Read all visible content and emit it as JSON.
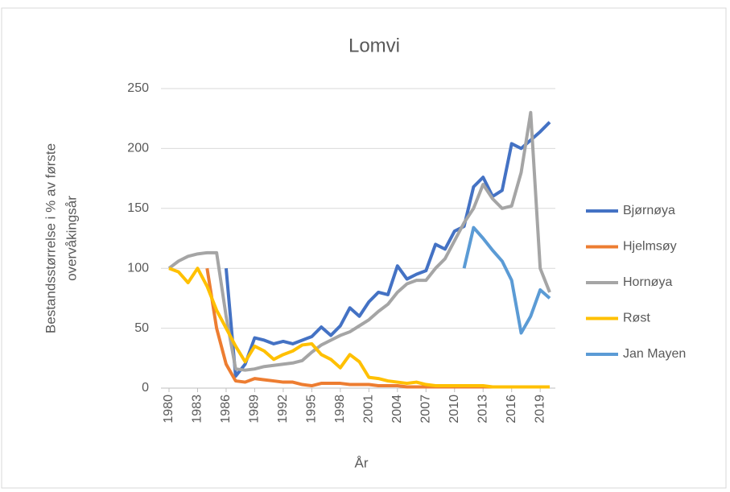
{
  "chart_data": {
    "type": "line",
    "title": "Lomvi",
    "x_label": "År",
    "y_label": [
      "Bestandsstørrelse i % av første",
      "overvåkingsår"
    ],
    "x": [
      1980,
      1981,
      1982,
      1983,
      1984,
      1985,
      1986,
      1987,
      1988,
      1989,
      1990,
      1991,
      1992,
      1993,
      1994,
      1995,
      1996,
      1997,
      1998,
      1999,
      2000,
      2001,
      2002,
      2003,
      2004,
      2005,
      2006,
      2007,
      2008,
      2009,
      2010,
      2011,
      2012,
      2013,
      2014,
      2015,
      2016,
      2017,
      2018,
      2019,
      2020
    ],
    "xlim": [
      1980,
      2020
    ],
    "xticks": [
      1980,
      1983,
      1986,
      1989,
      1992,
      1995,
      1998,
      2001,
      2004,
      2007,
      2010,
      2013,
      2016,
      2019
    ],
    "ylim": [
      0,
      250
    ],
    "yticks": [
      0,
      50,
      100,
      150,
      200,
      250
    ],
    "grid": true,
    "legend": "right",
    "series": [
      {
        "name": "Bjørnøya",
        "color": "#4472c4",
        "values": [
          null,
          null,
          null,
          null,
          null,
          null,
          100,
          10,
          20,
          42,
          40,
          37,
          39,
          37,
          40,
          43,
          51,
          44,
          52,
          67,
          60,
          72,
          80,
          78,
          102,
          91,
          95,
          98,
          120,
          116,
          131,
          135,
          168,
          176,
          160,
          165,
          204,
          200,
          207,
          214,
          222
        ]
      },
      {
        "name": "Hjelmsøy",
        "color": "#ed7d31",
        "values": [
          null,
          null,
          null,
          null,
          100,
          50,
          20,
          6,
          5,
          8,
          7,
          6,
          5,
          5,
          3,
          2,
          4,
          4,
          4,
          3,
          3,
          3,
          2,
          2,
          2,
          1,
          1,
          1,
          1,
          1,
          1,
          1,
          1,
          1,
          1,
          1,
          1,
          1,
          1,
          1,
          1
        ]
      },
      {
        "name": "Hornøya",
        "color": "#a5a5a5",
        "values": [
          100,
          106,
          110,
          112,
          113,
          113,
          60,
          16,
          15,
          16,
          18,
          19,
          20,
          21,
          23,
          30,
          36,
          40,
          44,
          47,
          52,
          57,
          64,
          70,
          80,
          87,
          90,
          90,
          100,
          108,
          123,
          138,
          150,
          170,
          158,
          150,
          152,
          180,
          230,
          100,
          80
        ]
      },
      {
        "name": "Røst",
        "color": "#ffc000",
        "values": [
          100,
          97,
          88,
          100,
          85,
          65,
          50,
          35,
          22,
          35,
          31,
          24,
          28,
          31,
          36,
          37,
          28,
          24,
          17,
          28,
          22,
          9,
          8,
          6,
          5,
          4,
          5,
          3,
          2,
          2,
          2,
          2,
          2,
          2,
          1,
          1,
          1,
          1,
          1,
          1,
          1
        ]
      },
      {
        "name": "Jan Mayen",
        "color": "#5b9bd5",
        "values": [
          null,
          null,
          null,
          null,
          null,
          null,
          null,
          null,
          null,
          null,
          null,
          null,
          null,
          null,
          null,
          null,
          null,
          null,
          null,
          null,
          null,
          null,
          null,
          null,
          null,
          null,
          null,
          null,
          null,
          null,
          null,
          100,
          134,
          125,
          115,
          106,
          90,
          46,
          60,
          82,
          75
        ]
      }
    ]
  }
}
